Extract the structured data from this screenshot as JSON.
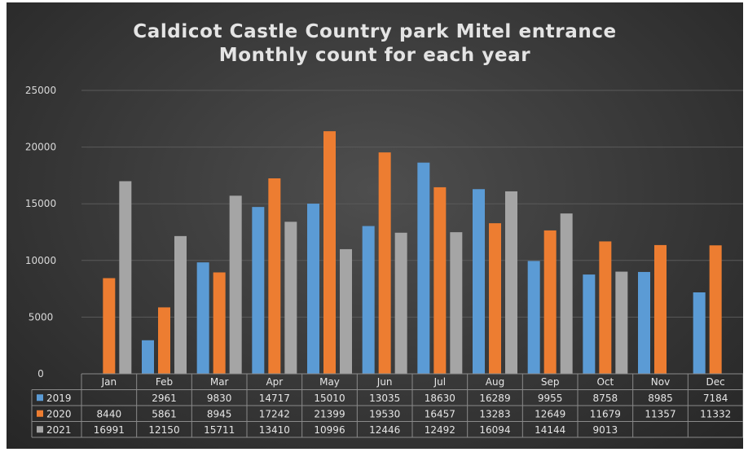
{
  "chart_data": {
    "type": "bar",
    "title": [
      "Caldicot Castle Country park Mitel entrance",
      "Monthly count for each year"
    ],
    "xlabel": "",
    "ylabel": "",
    "ylim": [
      0,
      25000
    ],
    "yticks": [
      0,
      5000,
      10000,
      15000,
      20000,
      25000
    ],
    "grid": true,
    "legend": "data-table",
    "categories": [
      "Jan",
      "Feb",
      "Mar",
      "Apr",
      "May",
      "Jun",
      "Jul",
      "Aug",
      "Sep",
      "Oct",
      "Nov",
      "Dec"
    ],
    "series": [
      {
        "name": "2019",
        "color": "#5b9bd5",
        "values": [
          null,
          2961,
          9830,
          14717,
          15010,
          13035,
          18630,
          16289,
          9955,
          8758,
          8985,
          7184
        ]
      },
      {
        "name": "2020",
        "color": "#ed7d31",
        "values": [
          8440,
          5861,
          8945,
          17242,
          21399,
          19530,
          16457,
          13283,
          12649,
          11679,
          11357,
          11332
        ]
      },
      {
        "name": "2021",
        "color": "#a5a5a5",
        "values": [
          16991,
          12150,
          15711,
          13410,
          10996,
          12446,
          12492,
          16094,
          14144,
          9013,
          null,
          null
        ]
      }
    ]
  }
}
